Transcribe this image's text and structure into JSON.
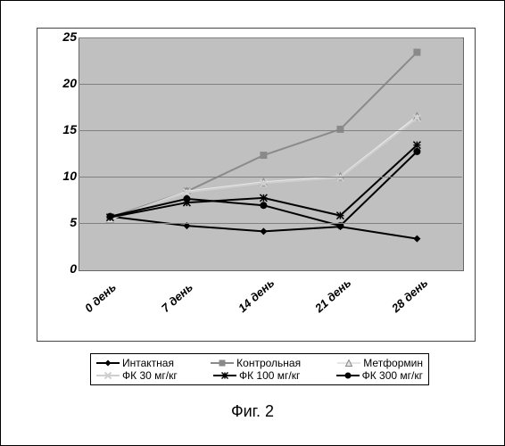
{
  "chart": {
    "type": "line",
    "background_color": "#c0c0c0",
    "grid_color": "#808080",
    "ylim": [
      0,
      25
    ],
    "ytick_step": 5,
    "yticks": [
      0,
      5,
      10,
      15,
      20,
      25
    ],
    "categories": [
      "0 день",
      "7 день",
      "14 день",
      "21 день",
      "28 день"
    ],
    "axis_font": {
      "size": 14,
      "weight": "bold",
      "style": "italic"
    },
    "series": [
      {
        "name": "Интактная",
        "color": "#000000",
        "marker": "diamond",
        "values": [
          5.8,
          4.8,
          4.2,
          4.7,
          3.4
        ]
      },
      {
        "name": "Контрольная",
        "color": "#8a8a8a",
        "marker": "square",
        "values": [
          5.7,
          8.5,
          12.4,
          15.2,
          23.5
        ]
      },
      {
        "name": "Метформин",
        "color": "#e6e6e6",
        "marker": "triangle",
        "values": [
          5.5,
          8.5,
          9.5,
          10.1,
          16.6
        ]
      },
      {
        "name": "ФК  30 мг/кг",
        "color": "#cfcfcf",
        "marker": "x",
        "values": [
          5.6,
          8.4,
          9.4,
          10.0,
          16.4
        ]
      },
      {
        "name": "ФК 100 мг/кг",
        "color": "#000000",
        "marker": "asterisk",
        "values": [
          5.7,
          7.3,
          7.8,
          5.9,
          13.5
        ]
      },
      {
        "name": "ФК 300 мг/кг",
        "color": "#000000",
        "marker": "circle",
        "values": [
          5.8,
          7.7,
          7.0,
          4.8,
          12.8
        ]
      }
    ],
    "line_width": 2,
    "marker_size": 8
  },
  "legend": {
    "row1": [
      0,
      1,
      2
    ],
    "row2": [
      3,
      4,
      5
    ]
  },
  "caption": "Фиг. 2"
}
